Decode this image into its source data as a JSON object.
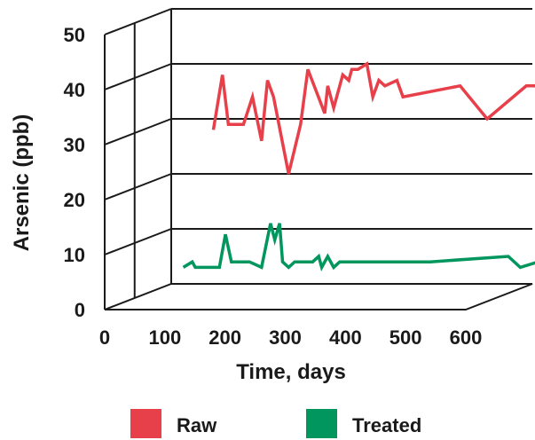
{
  "chart_data": {
    "type": "line",
    "title": "",
    "xlabel": "Time, days",
    "ylabel": "Arsenic (ppb)",
    "xlim": [
      0,
      600
    ],
    "ylim": [
      0,
      50
    ],
    "x_ticks": [
      "0",
      "100",
      "200",
      "300",
      "400",
      "500",
      "600"
    ],
    "y_ticks": [
      "0",
      "10",
      "20",
      "30",
      "40",
      "50"
    ],
    "grid": "horizontal",
    "legend_position": "bottom",
    "series": [
      {
        "name": "Raw",
        "color": "#e8404a",
        "points": [
          [
            70,
            28
          ],
          [
            85,
            38
          ],
          [
            95,
            29
          ],
          [
            120,
            29
          ],
          [
            135,
            34
          ],
          [
            150,
            26
          ],
          [
            160,
            37
          ],
          [
            170,
            34
          ],
          [
            195,
            20
          ],
          [
            215,
            29
          ],
          [
            227,
            39
          ],
          [
            255,
            31
          ],
          [
            260,
            36
          ],
          [
            270,
            32
          ],
          [
            285,
            38
          ],
          [
            295,
            37
          ],
          [
            300,
            39
          ],
          [
            310,
            39
          ],
          [
            325,
            40
          ],
          [
            335,
            34
          ],
          [
            345,
            37
          ],
          [
            355,
            36
          ],
          [
            375,
            37
          ],
          [
            385,
            34
          ],
          [
            480,
            36
          ],
          [
            525,
            30
          ],
          [
            590,
            36
          ],
          [
            605,
            36
          ],
          [
            630,
            33
          ]
        ]
      },
      {
        "name": "Treated",
        "color": "#00965e",
        "points": [
          [
            20,
            3
          ],
          [
            35,
            4
          ],
          [
            40,
            3
          ],
          [
            80,
            3
          ],
          [
            90,
            9
          ],
          [
            100,
            4
          ],
          [
            130,
            4
          ],
          [
            150,
            3
          ],
          [
            165,
            11
          ],
          [
            172,
            8
          ],
          [
            180,
            11
          ],
          [
            185,
            4
          ],
          [
            195,
            3
          ],
          [
            205,
            4
          ],
          [
            235,
            4
          ],
          [
            245,
            5
          ],
          [
            250,
            3
          ],
          [
            260,
            5
          ],
          [
            270,
            3
          ],
          [
            280,
            4
          ],
          [
            320,
            4
          ],
          [
            430,
            4
          ],
          [
            560,
            5
          ],
          [
            580,
            3
          ],
          [
            610,
            4
          ]
        ]
      }
    ]
  }
}
